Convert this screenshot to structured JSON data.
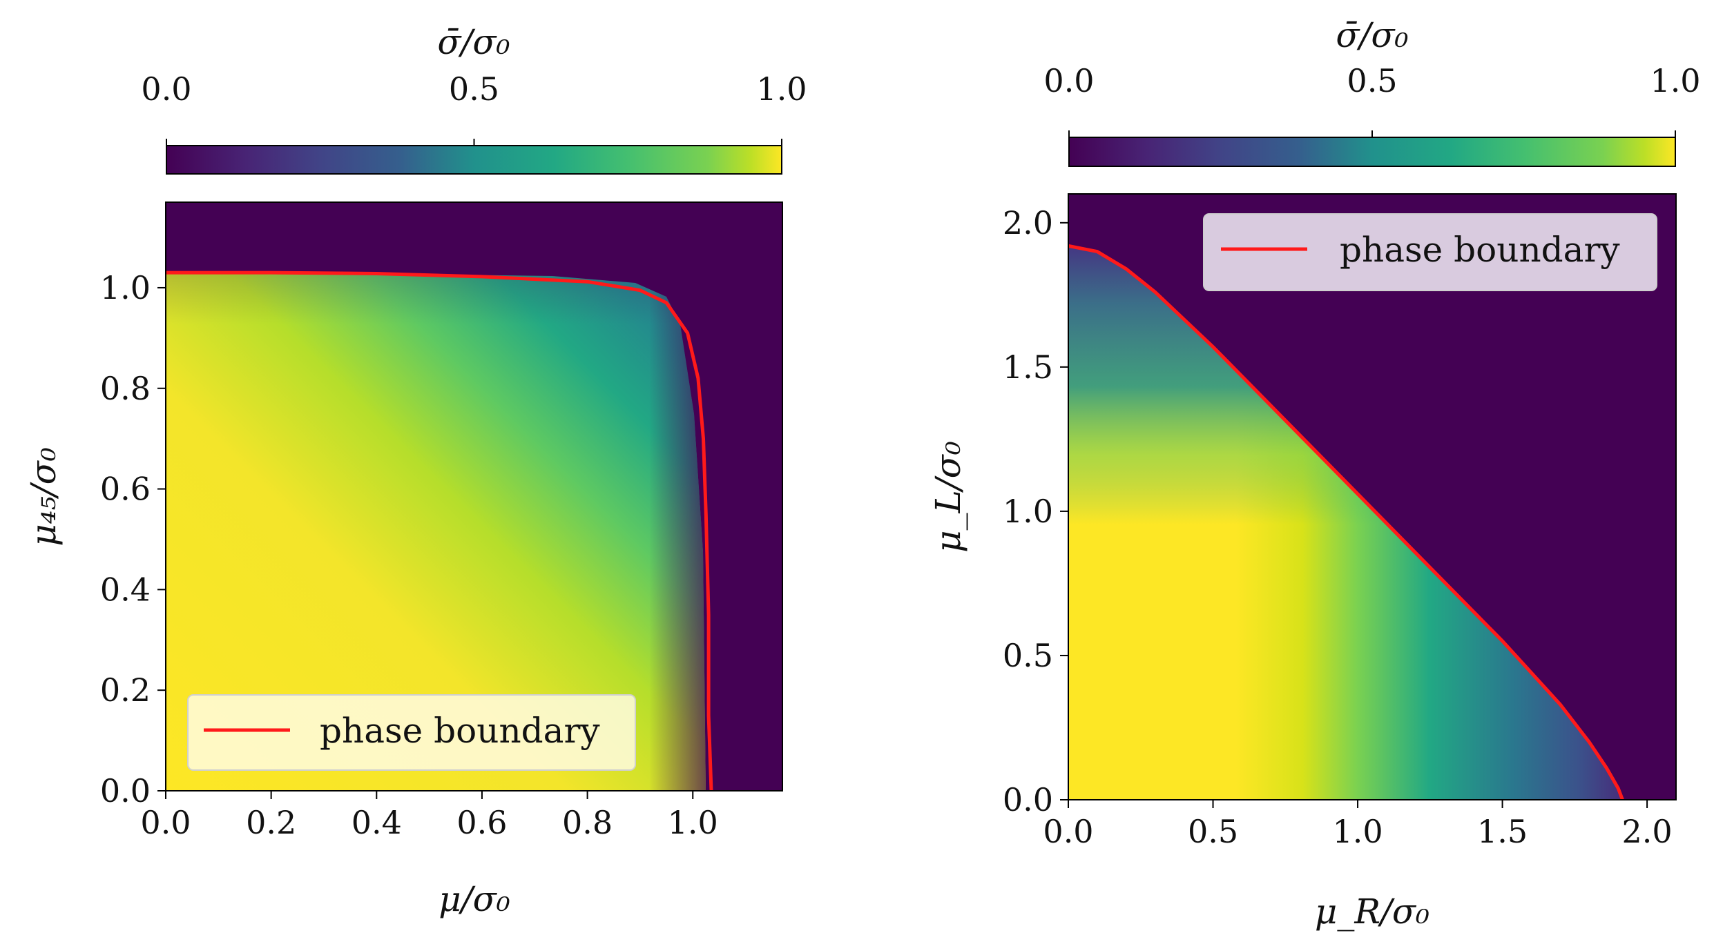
{
  "chart_data": [
    {
      "type": "heatmap",
      "title": "",
      "xlabel": "μ/σ₀",
      "ylabel": "μ₄₅/σ₀",
      "xlim": [
        0.0,
        1.17
      ],
      "ylim": [
        0.0,
        1.17
      ],
      "xticks": [
        "0.0",
        "0.2",
        "0.4",
        "0.6",
        "0.8",
        "1.0"
      ],
      "xtick_values": [
        0.0,
        0.2,
        0.4,
        0.6,
        0.8,
        1.0
      ],
      "yticks": [
        "0.0",
        "0.2",
        "0.4",
        "0.6",
        "0.8",
        "1.0"
      ],
      "ytick_values": [
        0.0,
        0.2,
        0.4,
        0.6,
        0.8,
        1.0
      ],
      "colorbar": {
        "label": "σ̄/σ₀",
        "ticks": [
          "0.0",
          "0.5",
          "1.0"
        ],
        "tick_values": [
          0.0,
          0.5,
          1.0
        ],
        "colormap": "viridis",
        "placement": "top"
      },
      "legend": {
        "label": "phase boundary",
        "placement": "lower-left"
      },
      "phase_boundary": {
        "x": [
          0.0,
          0.2,
          0.4,
          0.6,
          0.8,
          0.9,
          0.95,
          0.99,
          1.01,
          1.02,
          1.025,
          1.03,
          1.03,
          1.035
        ],
        "y": [
          1.03,
          1.03,
          1.028,
          1.022,
          1.012,
          0.995,
          0.97,
          0.91,
          0.82,
          0.7,
          0.55,
          0.35,
          0.15,
          0.0
        ]
      },
      "boundary_color": "#ff1a1a"
    },
    {
      "type": "heatmap",
      "title": "",
      "xlabel": "μ_R/σ₀",
      "ylabel": "μ_L/σ₀",
      "xlim": [
        0.0,
        2.1
      ],
      "ylim": [
        0.0,
        2.1
      ],
      "xticks": [
        "0.0",
        "0.5",
        "1.0",
        "1.5",
        "2.0"
      ],
      "xtick_values": [
        0.0,
        0.5,
        1.0,
        1.5,
        2.0
      ],
      "yticks": [
        "0.0",
        "0.5",
        "1.0",
        "1.5",
        "2.0"
      ],
      "ytick_values": [
        0.0,
        0.5,
        1.0,
        1.5,
        2.0
      ],
      "colorbar": {
        "label": "σ̄/σ₀",
        "ticks": [
          "0.0",
          "0.5",
          "1.0"
        ],
        "tick_values": [
          0.0,
          0.5,
          1.0
        ],
        "colormap": "viridis",
        "placement": "top"
      },
      "legend": {
        "label": "phase boundary",
        "placement": "upper-right"
      },
      "phase_boundary": {
        "x": [
          0.0,
          0.1,
          0.2,
          0.3,
          0.5,
          1.0,
          1.5,
          1.7,
          1.8,
          1.86,
          1.9,
          1.915
        ],
        "y": [
          1.92,
          1.9,
          1.84,
          1.76,
          1.57,
          1.06,
          0.55,
          0.33,
          0.2,
          0.11,
          0.04,
          0.0
        ]
      },
      "boundary_color": "#ff1a1a"
    }
  ]
}
